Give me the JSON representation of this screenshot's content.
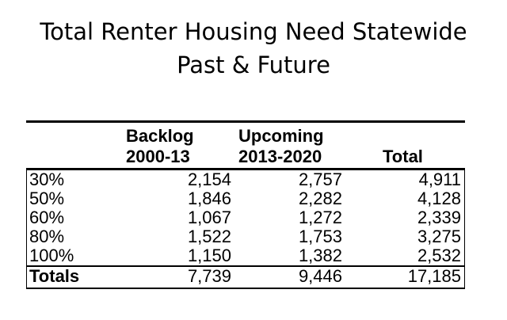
{
  "title": {
    "line1": "Total Renter Housing Need Statewide",
    "line2": "Past & Future"
  },
  "table": {
    "headers": {
      "backlog_line1": "Backlog",
      "backlog_line2": "2000-13",
      "upcoming_line1": "Upcoming",
      "upcoming_line2": "2013-2020",
      "total": "Total"
    },
    "rows": [
      {
        "label": "30%",
        "backlog": "2,154",
        "upcoming": "2,757",
        "total": "4,911"
      },
      {
        "label": "50%",
        "backlog": "1,846",
        "upcoming": "2,282",
        "total": "4,128"
      },
      {
        "label": "60%",
        "backlog": "1,067",
        "upcoming": "1,272",
        "total": "2,339"
      },
      {
        "label": "80%",
        "backlog": "1,522",
        "upcoming": "1,753",
        "total": "3,275"
      },
      {
        "label": "100%",
        "backlog": "1,150",
        "upcoming": "1,382",
        "total": "2,532"
      }
    ],
    "totals": {
      "label": "Totals",
      "backlog": "7,739",
      "upcoming": "9,446",
      "total": "17,185"
    }
  }
}
